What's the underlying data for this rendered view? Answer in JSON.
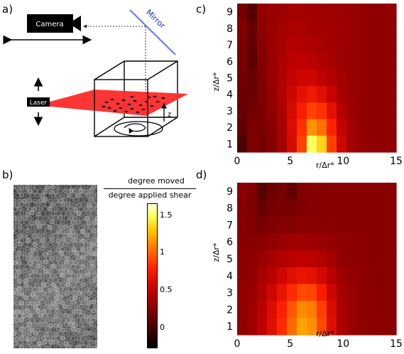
{
  "panels": {
    "a": "a)",
    "b": "b)",
    "c": "c)",
    "d": "d)"
  },
  "schematic": {
    "camera_label": "Camera",
    "mirror_label": "Mirror",
    "laser_label": "Laser",
    "z_label": "z",
    "colors": {
      "laser_sheet": "#ff2a2a",
      "mirror": "#6a7ee8",
      "mirror_text": "#1f1fd0"
    }
  },
  "colorbar": {
    "numerator": "degree moved",
    "denominator": "degree applied shear",
    "ticks": [
      "1.5",
      "1",
      "0.5",
      "0"
    ],
    "tick_values": [
      1.5,
      1.0,
      0.5,
      0.0
    ],
    "range": [
      -0.2,
      1.7
    ]
  },
  "chart_data": [
    {
      "type": "heatmap",
      "panel": "c",
      "xlabel": "r/Δr*",
      "ylabel": "z/Δr*",
      "x_ticks": [
        "0",
        "5",
        "10",
        "15"
      ],
      "y_ticks": [
        "1",
        "2",
        "3",
        "4",
        "5",
        "6",
        "7",
        "8",
        "9"
      ],
      "xlim": [
        0,
        15
      ],
      "ylim": [
        1,
        9
      ],
      "rows_top_to_bottom": [
        [
          0.25,
          0.12,
          0.38,
          0.4,
          0.42,
          0.45,
          0.44,
          0.43,
          0.42,
          0.42,
          0.42,
          0.4,
          0.38,
          0.37,
          0.37,
          0.37
        ],
        [
          0.3,
          0.2,
          0.36,
          0.4,
          0.44,
          0.48,
          0.47,
          0.45,
          0.44,
          0.43,
          0.42,
          0.4,
          0.38,
          0.37,
          0.37,
          0.37
        ],
        [
          0.28,
          0.18,
          0.34,
          0.4,
          0.46,
          0.52,
          0.5,
          0.48,
          0.46,
          0.44,
          0.42,
          0.4,
          0.38,
          0.37,
          0.37,
          0.37
        ],
        [
          0.26,
          0.16,
          0.32,
          0.4,
          0.48,
          0.55,
          0.55,
          0.54,
          0.5,
          0.46,
          0.42,
          0.4,
          0.38,
          0.37,
          0.37,
          0.37
        ],
        [
          0.24,
          0.2,
          0.3,
          0.4,
          0.5,
          0.58,
          0.62,
          0.62,
          0.56,
          0.5,
          0.44,
          0.4,
          0.38,
          0.37,
          0.37,
          0.37
        ],
        [
          0.22,
          0.22,
          0.3,
          0.38,
          0.5,
          0.62,
          0.72,
          0.78,
          0.7,
          0.6,
          0.46,
          0.4,
          0.38,
          0.37,
          0.37,
          0.37
        ],
        [
          0.2,
          0.25,
          0.28,
          0.36,
          0.48,
          0.66,
          0.82,
          0.95,
          0.9,
          0.72,
          0.52,
          0.42,
          0.38,
          0.37,
          0.37,
          0.37
        ],
        [
          0.18,
          0.28,
          0.28,
          0.34,
          0.46,
          0.68,
          0.9,
          1.2,
          1.1,
          0.85,
          0.58,
          0.44,
          0.38,
          0.37,
          0.37,
          0.37
        ],
        [
          0.1,
          0.3,
          0.26,
          0.32,
          0.44,
          0.66,
          0.95,
          1.55,
          1.4,
          0.95,
          0.62,
          0.44,
          0.38,
          0.37,
          0.37,
          0.37
        ]
      ]
    },
    {
      "type": "heatmap",
      "panel": "d",
      "xlabel": "r/Δr*",
      "ylabel": "z/Δr*",
      "x_ticks": [
        "0",
        "5",
        "10",
        "15"
      ],
      "y_ticks": [
        "1",
        "2",
        "3",
        "4",
        "5",
        "6",
        "7",
        "8",
        "9"
      ],
      "xlim": [
        0,
        15
      ],
      "ylim": [
        1,
        9
      ],
      "rows_top_to_bottom": [
        [
          0.34,
          0.3,
          0.14,
          0.22,
          0.25,
          0.18,
          0.3,
          0.32,
          0.32,
          0.33,
          0.33,
          0.33,
          0.33,
          0.33,
          0.33,
          0.33
        ],
        [
          0.32,
          0.28,
          0.2,
          0.26,
          0.28,
          0.26,
          0.3,
          0.32,
          0.32,
          0.33,
          0.33,
          0.33,
          0.33,
          0.33,
          0.33,
          0.33
        ],
        [
          0.33,
          0.3,
          0.26,
          0.3,
          0.32,
          0.32,
          0.34,
          0.34,
          0.34,
          0.34,
          0.33,
          0.33,
          0.33,
          0.33,
          0.33,
          0.33
        ],
        [
          0.34,
          0.33,
          0.34,
          0.38,
          0.4,
          0.42,
          0.42,
          0.42,
          0.4,
          0.38,
          0.36,
          0.36,
          0.35,
          0.34,
          0.33,
          0.34
        ],
        [
          0.35,
          0.35,
          0.4,
          0.46,
          0.5,
          0.54,
          0.55,
          0.54,
          0.5,
          0.44,
          0.38,
          0.36,
          0.35,
          0.34,
          0.34,
          0.34
        ],
        [
          0.36,
          0.38,
          0.46,
          0.54,
          0.62,
          0.7,
          0.74,
          0.72,
          0.64,
          0.52,
          0.42,
          0.38,
          0.36,
          0.35,
          0.34,
          0.34
        ],
        [
          0.37,
          0.4,
          0.5,
          0.62,
          0.74,
          0.88,
          0.98,
          0.96,
          0.82,
          0.62,
          0.46,
          0.4,
          0.37,
          0.35,
          0.34,
          0.34
        ],
        [
          0.37,
          0.42,
          0.54,
          0.68,
          0.84,
          1.02,
          1.18,
          1.14,
          0.94,
          0.68,
          0.48,
          0.4,
          0.37,
          0.35,
          0.34,
          0.34
        ],
        [
          0.36,
          0.42,
          0.56,
          0.7,
          0.88,
          1.08,
          1.25,
          1.2,
          0.98,
          0.7,
          0.48,
          0.4,
          0.37,
          0.35,
          0.34,
          0.34
        ]
      ]
    }
  ]
}
